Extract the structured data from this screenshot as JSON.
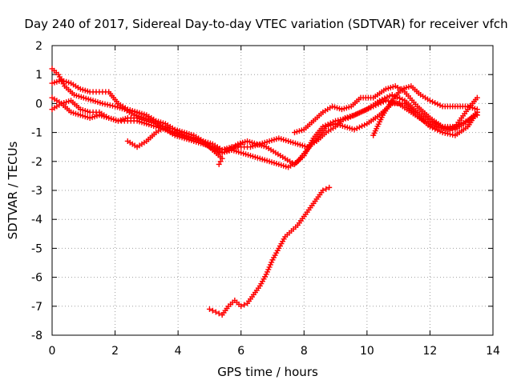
{
  "chart_data": {
    "type": "scatter",
    "title": "Day 240 of 2017, Sidereal Day-to-day VTEC variation (SDTVAR) for receiver vfch",
    "xlabel": "GPS time / hours",
    "ylabel": "SDTVAR / TECUs",
    "xlim": [
      0,
      14
    ],
    "ylim": [
      -8,
      2
    ],
    "xticks": [
      0,
      2,
      4,
      6,
      8,
      10,
      12,
      14
    ],
    "yticks": [
      -8,
      -7,
      -6,
      -5,
      -4,
      -3,
      -2,
      -1,
      0,
      1,
      2
    ],
    "grid": true,
    "marker": "plus",
    "color": "#ff0000",
    "series": [
      {
        "name": "track-1",
        "points": [
          [
            0.0,
            1.2
          ],
          [
            0.2,
            1.0
          ],
          [
            0.4,
            0.6
          ],
          [
            0.7,
            0.3
          ],
          [
            1.0,
            0.2
          ],
          [
            1.3,
            0.1
          ],
          [
            1.6,
            0.0
          ],
          [
            2.0,
            -0.1
          ],
          [
            2.3,
            -0.2
          ],
          [
            2.6,
            -0.4
          ],
          [
            2.9,
            -0.5
          ],
          [
            3.2,
            -0.6
          ],
          [
            3.5,
            -0.8
          ],
          [
            3.8,
            -1.0
          ],
          [
            4.1,
            -1.1
          ],
          [
            4.4,
            -1.2
          ],
          [
            4.7,
            -1.3
          ],
          [
            5.0,
            -1.5
          ],
          [
            5.3,
            -1.6
          ],
          [
            5.6,
            -1.6
          ],
          [
            5.9,
            -1.4
          ],
          [
            6.2,
            -1.3
          ],
          [
            6.5,
            -1.4
          ],
          [
            6.8,
            -1.5
          ],
          [
            7.1,
            -1.7
          ],
          [
            7.4,
            -1.9
          ],
          [
            7.7,
            -2.1
          ],
          [
            8.0,
            -1.8
          ],
          [
            8.3,
            -1.2
          ],
          [
            8.6,
            -0.8
          ],
          [
            9.0,
            -0.6
          ],
          [
            9.4,
            -0.5
          ],
          [
            9.8,
            -0.3
          ],
          [
            10.2,
            -0.1
          ],
          [
            10.6,
            0.1
          ],
          [
            11.0,
            0.0
          ],
          [
            11.4,
            -0.3
          ],
          [
            11.8,
            -0.6
          ],
          [
            12.2,
            -0.8
          ],
          [
            12.6,
            -0.9
          ],
          [
            13.0,
            -0.7
          ],
          [
            13.5,
            -0.4
          ]
        ]
      },
      {
        "name": "track-2",
        "points": [
          [
            0.0,
            0.7
          ],
          [
            0.3,
            0.8
          ],
          [
            0.6,
            0.7
          ],
          [
            0.9,
            0.5
          ],
          [
            1.2,
            0.4
          ],
          [
            1.5,
            0.4
          ],
          [
            1.8,
            0.4
          ],
          [
            2.1,
            0.0
          ],
          [
            2.4,
            -0.2
          ],
          [
            2.7,
            -0.3
          ],
          [
            3.0,
            -0.4
          ],
          [
            3.3,
            -0.6
          ],
          [
            3.6,
            -0.7
          ],
          [
            3.9,
            -0.9
          ],
          [
            4.2,
            -1.1
          ],
          [
            4.5,
            -1.2
          ],
          [
            4.8,
            -1.3
          ],
          [
            5.1,
            -1.4
          ],
          [
            5.4,
            -1.6
          ],
          [
            5.7,
            -1.5
          ],
          [
            6.0,
            -1.5
          ],
          [
            6.3,
            -1.5
          ],
          [
            6.6,
            -1.4
          ],
          [
            6.9,
            -1.3
          ],
          [
            7.2,
            -1.2
          ],
          [
            7.5,
            -1.3
          ],
          [
            7.8,
            -1.4
          ],
          [
            8.1,
            -1.5
          ],
          [
            8.4,
            -1.3
          ],
          [
            8.7,
            -1.0
          ],
          [
            9.0,
            -0.8
          ],
          [
            9.3,
            -0.5
          ],
          [
            9.6,
            -0.4
          ],
          [
            10.0,
            -0.2
          ],
          [
            10.4,
            0.1
          ],
          [
            10.8,
            0.3
          ],
          [
            11.2,
            0.1
          ],
          [
            11.6,
            -0.3
          ],
          [
            12.0,
            -0.6
          ],
          [
            12.4,
            -0.8
          ],
          [
            12.8,
            -0.9
          ],
          [
            13.2,
            -0.6
          ],
          [
            13.5,
            -0.3
          ]
        ]
      },
      {
        "name": "track-3",
        "points": [
          [
            0.0,
            0.2
          ],
          [
            0.3,
            0.0
          ],
          [
            0.6,
            -0.3
          ],
          [
            0.9,
            -0.4
          ],
          [
            1.2,
            -0.5
          ],
          [
            1.5,
            -0.4
          ],
          [
            1.8,
            -0.5
          ],
          [
            2.1,
            -0.6
          ],
          [
            2.4,
            -0.5
          ],
          [
            2.7,
            -0.5
          ],
          [
            3.0,
            -0.6
          ],
          [
            3.3,
            -0.7
          ],
          [
            3.6,
            -0.9
          ],
          [
            3.9,
            -1.1
          ],
          [
            4.2,
            -1.2
          ],
          [
            4.5,
            -1.3
          ],
          [
            4.8,
            -1.4
          ],
          [
            5.1,
            -1.5
          ],
          [
            5.4,
            -1.7
          ],
          [
            5.7,
            -1.6
          ],
          [
            6.0,
            -1.7
          ],
          [
            6.3,
            -1.8
          ],
          [
            6.6,
            -1.9
          ],
          [
            6.9,
            -2.0
          ],
          [
            7.2,
            -2.1
          ],
          [
            7.5,
            -2.2
          ],
          [
            7.8,
            -2.0
          ],
          [
            8.1,
            -1.6
          ],
          [
            8.4,
            -1.2
          ],
          [
            8.7,
            -0.8
          ],
          [
            9.0,
            -0.7
          ],
          [
            9.3,
            -0.8
          ],
          [
            9.6,
            -0.9
          ],
          [
            10.0,
            -0.7
          ],
          [
            10.4,
            -0.4
          ],
          [
            10.8,
            0.0
          ],
          [
            11.2,
            0.0
          ],
          [
            11.6,
            -0.4
          ],
          [
            12.0,
            -0.8
          ],
          [
            12.4,
            -1.0
          ],
          [
            12.8,
            -1.1
          ],
          [
            13.2,
            -0.8
          ],
          [
            13.5,
            -0.3
          ]
        ]
      },
      {
        "name": "track-4",
        "points": [
          [
            0.0,
            -0.2
          ],
          [
            0.3,
            0.0
          ],
          [
            0.6,
            0.1
          ],
          [
            0.9,
            -0.2
          ],
          [
            1.2,
            -0.3
          ],
          [
            1.5,
            -0.3
          ],
          [
            1.8,
            -0.5
          ],
          [
            2.1,
            -0.6
          ],
          [
            2.4,
            -0.6
          ],
          [
            2.7,
            -0.6
          ],
          [
            3.0,
            -0.7
          ],
          [
            3.3,
            -0.8
          ],
          [
            3.6,
            -0.9
          ],
          [
            3.9,
            -1.0
          ],
          [
            4.2,
            -1.1
          ],
          [
            4.5,
            -1.2
          ],
          [
            4.8,
            -1.3
          ],
          [
            5.1,
            -1.6
          ],
          [
            5.4,
            -1.9
          ],
          [
            5.3,
            -2.1
          ],
          [
            7.7,
            -1.0
          ],
          [
            8.0,
            -0.9
          ],
          [
            8.3,
            -0.6
          ],
          [
            8.6,
            -0.3
          ],
          [
            8.9,
            -0.1
          ],
          [
            9.2,
            -0.2
          ],
          [
            9.5,
            -0.1
          ],
          [
            9.8,
            0.2
          ],
          [
            10.2,
            0.2
          ],
          [
            10.6,
            0.5
          ],
          [
            10.9,
            0.6
          ],
          [
            11.2,
            0.4
          ],
          [
            11.6,
            -0.1
          ],
          [
            12.0,
            -0.5
          ],
          [
            12.4,
            -0.8
          ],
          [
            12.8,
            -0.8
          ],
          [
            13.2,
            -0.2
          ],
          [
            13.5,
            0.2
          ]
        ]
      },
      {
        "name": "track-5",
        "points": [
          [
            2.4,
            -1.3
          ],
          [
            2.7,
            -1.5
          ],
          [
            3.0,
            -1.3
          ],
          [
            3.3,
            -1.0
          ],
          [
            3.6,
            -0.8
          ],
          [
            3.9,
            -0.9
          ],
          [
            4.2,
            -1.0
          ],
          [
            4.5,
            -1.1
          ],
          [
            4.8,
            -1.3
          ],
          [
            5.1,
            -1.6
          ],
          [
            5.4,
            -1.7
          ],
          [
            5.7,
            -1.6
          ],
          [
            6.0,
            -1.4
          ],
          [
            10.2,
            -1.1
          ],
          [
            10.5,
            -0.4
          ],
          [
            10.8,
            0.1
          ],
          [
            11.1,
            0.5
          ],
          [
            11.4,
            0.6
          ],
          [
            11.7,
            0.3
          ],
          [
            12.0,
            0.1
          ],
          [
            12.4,
            -0.1
          ],
          [
            12.8,
            -0.1
          ],
          [
            13.2,
            -0.1
          ],
          [
            13.5,
            -0.2
          ]
        ]
      },
      {
        "name": "track-6",
        "points": [
          [
            5.0,
            -7.1
          ],
          [
            5.2,
            -7.2
          ],
          [
            5.4,
            -7.3
          ],
          [
            5.6,
            -7.0
          ],
          [
            5.8,
            -6.8
          ],
          [
            6.0,
            -7.0
          ],
          [
            6.2,
            -6.9
          ],
          [
            6.4,
            -6.6
          ],
          [
            6.6,
            -6.3
          ],
          [
            6.8,
            -5.9
          ],
          [
            7.0,
            -5.4
          ],
          [
            7.2,
            -5.0
          ],
          [
            7.4,
            -4.6
          ],
          [
            7.6,
            -4.4
          ],
          [
            7.8,
            -4.2
          ],
          [
            8.0,
            -3.9
          ],
          [
            8.2,
            -3.6
          ],
          [
            8.4,
            -3.3
          ],
          [
            8.6,
            -3.0
          ],
          [
            8.8,
            -2.9
          ]
        ]
      }
    ]
  }
}
